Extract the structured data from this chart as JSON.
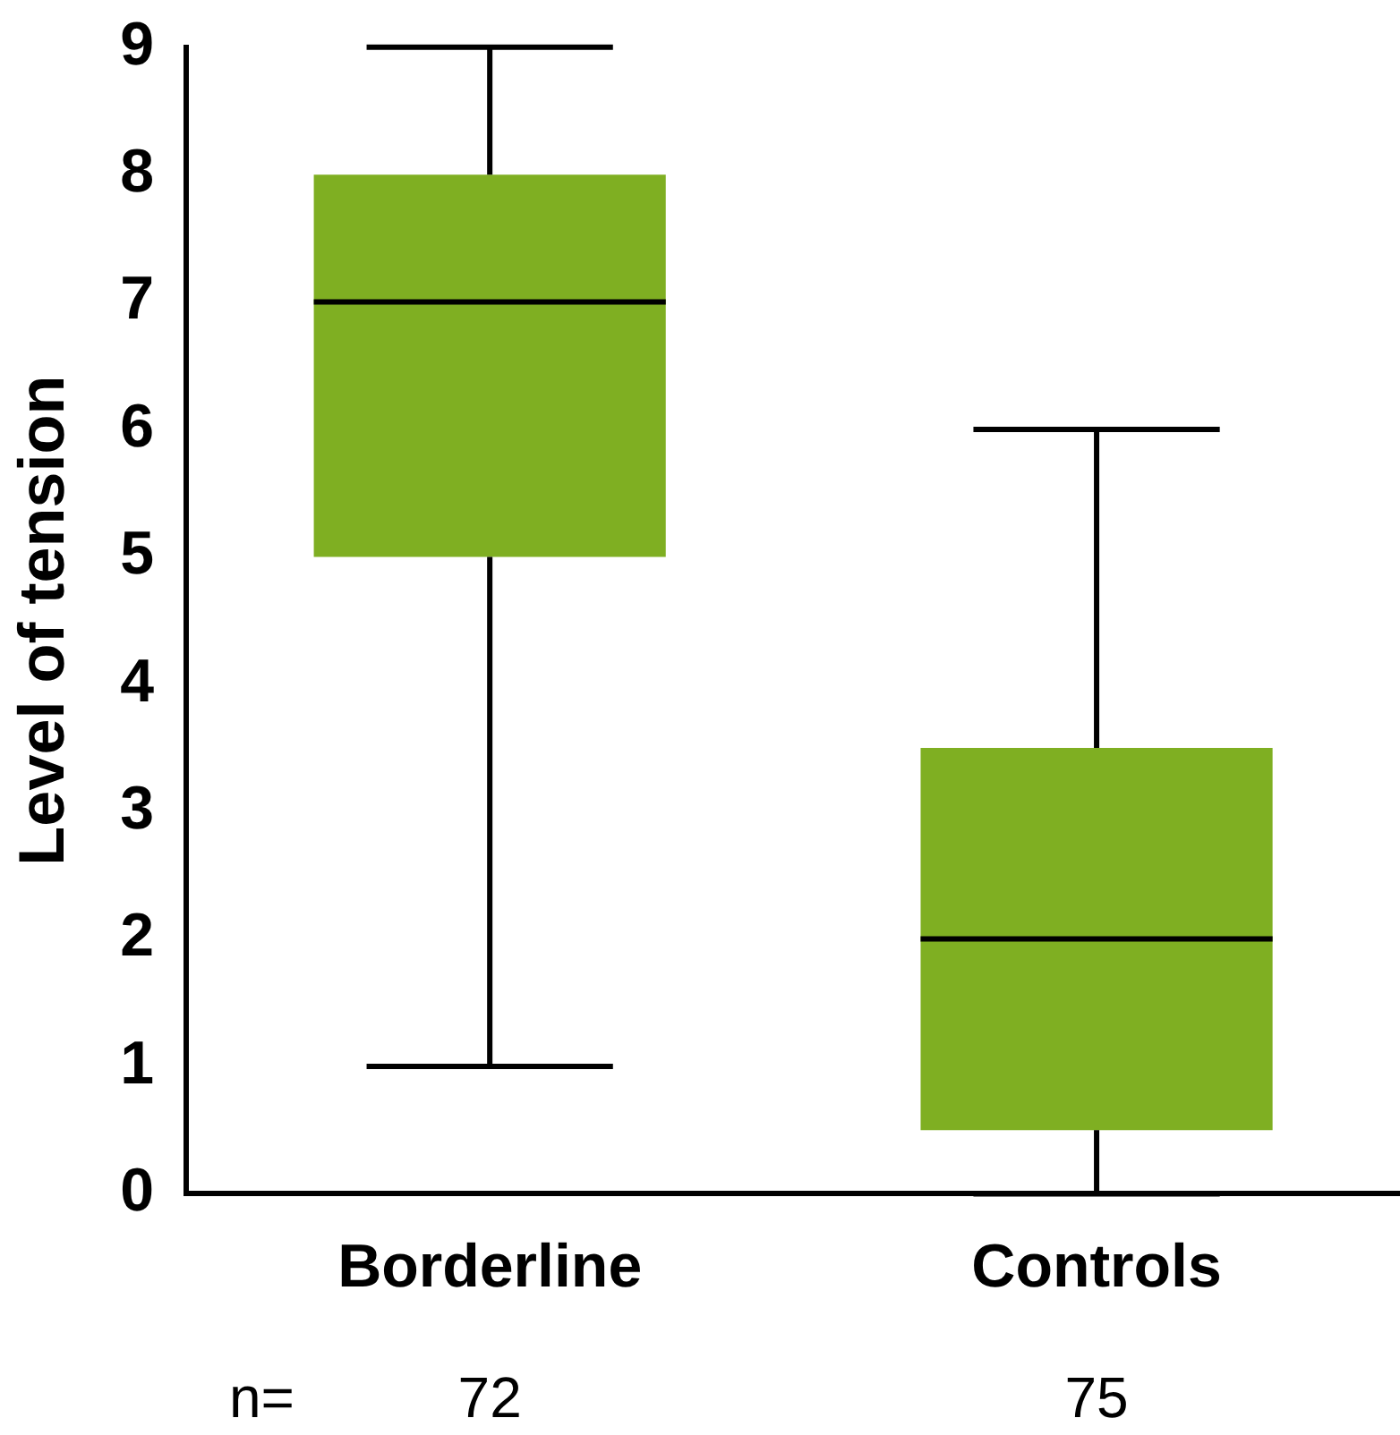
{
  "chart_data": {
    "type": "box",
    "ylabel": "Level of tension",
    "categories": [
      "Borderline",
      "Controls"
    ],
    "boxes": [
      {
        "low": 1,
        "q1": 5,
        "median": 7,
        "q3": 8,
        "high": 9
      },
      {
        "low": 0,
        "q1": 0.5,
        "median": 2,
        "q3": 3.5,
        "high": 6
      }
    ],
    "color": "#7faf22",
    "ylim": [
      0,
      9
    ],
    "yticks": [
      0,
      1,
      2,
      3,
      4,
      5,
      6,
      7,
      8,
      9
    ],
    "grid": false,
    "legend": false,
    "annotations": [
      "n=",
      "72",
      "75"
    ]
  }
}
